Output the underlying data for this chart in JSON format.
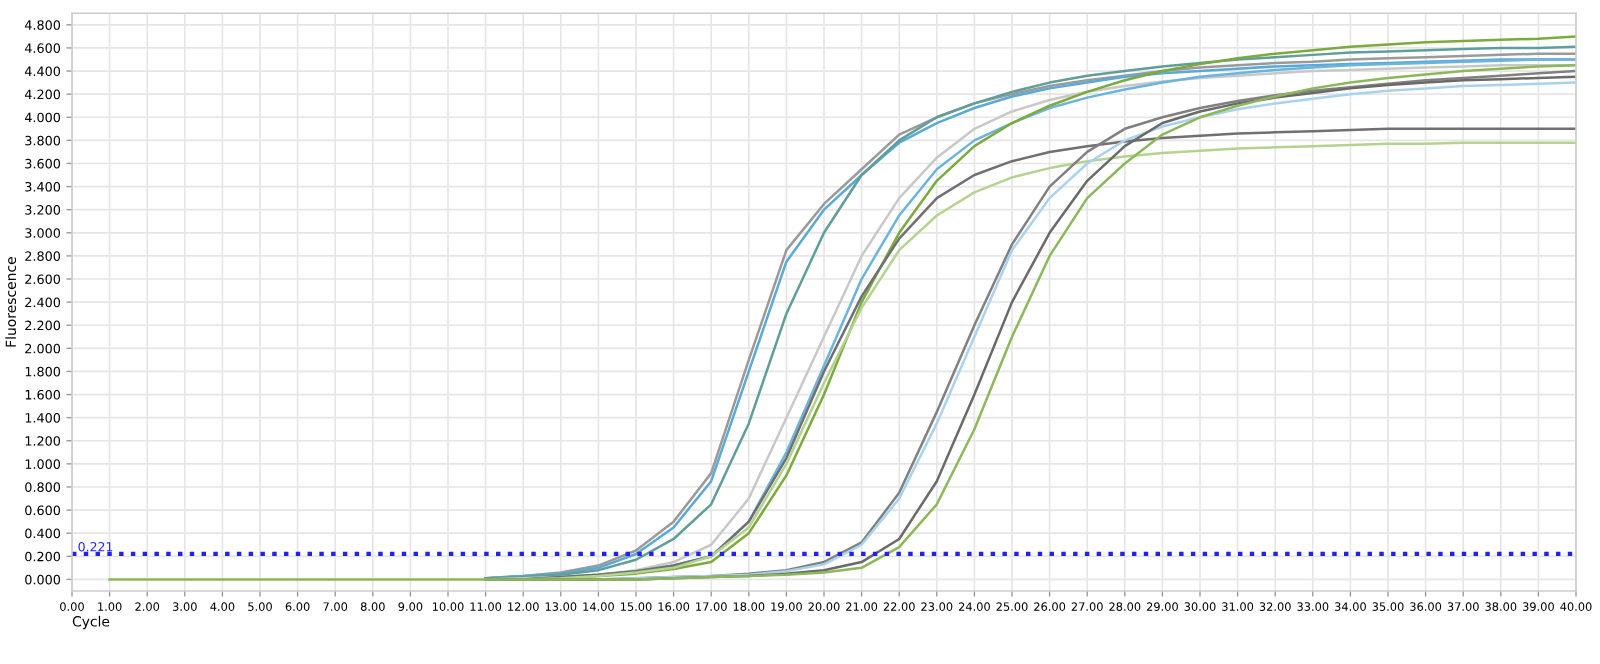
{
  "chart_data": {
    "type": "line",
    "xlabel": "Cycle",
    "ylabel": "Fluorescence",
    "x": [
      1,
      2,
      3,
      4,
      5,
      6,
      7,
      8,
      9,
      10,
      11,
      12,
      13,
      14,
      15,
      16,
      17,
      18,
      19,
      20,
      21,
      22,
      23,
      24,
      25,
      26,
      27,
      28,
      29,
      30,
      31,
      32,
      33,
      34,
      35,
      36,
      37,
      38,
      39,
      40
    ],
    "xlim": [
      0,
      40
    ],
    "ylim": [
      -0.1,
      4.9
    ],
    "xticks": [
      {
        "value": 0,
        "label": "0.00"
      },
      {
        "value": 1,
        "label": "1.00"
      },
      {
        "value": 2,
        "label": "2.00"
      },
      {
        "value": 3,
        "label": "3.00"
      },
      {
        "value": 4,
        "label": "4.00"
      },
      {
        "value": 5,
        "label": "5.00"
      },
      {
        "value": 6,
        "label": "6.00"
      },
      {
        "value": 7,
        "label": "7.00"
      },
      {
        "value": 8,
        "label": "8.00"
      },
      {
        "value": 9,
        "label": "9.00"
      },
      {
        "value": 10,
        "label": "10.00"
      },
      {
        "value": 11,
        "label": "11.00"
      },
      {
        "value": 12,
        "label": "12.00"
      },
      {
        "value": 13,
        "label": "13.00"
      },
      {
        "value": 14,
        "label": "14.00"
      },
      {
        "value": 15,
        "label": "15.00"
      },
      {
        "value": 16,
        "label": "16.00"
      },
      {
        "value": 17,
        "label": "17.00"
      },
      {
        "value": 18,
        "label": "18.00"
      },
      {
        "value": 19,
        "label": "19.00"
      },
      {
        "value": 20,
        "label": "20.00"
      },
      {
        "value": 21,
        "label": "21.00"
      },
      {
        "value": 22,
        "label": "22.00"
      },
      {
        "value": 23,
        "label": "23.00"
      },
      {
        "value": 24,
        "label": "24.00"
      },
      {
        "value": 25,
        "label": "25.00"
      },
      {
        "value": 26,
        "label": "26.00"
      },
      {
        "value": 27,
        "label": "27.00"
      },
      {
        "value": 28,
        "label": "28.00"
      },
      {
        "value": 29,
        "label": "29.00"
      },
      {
        "value": 30,
        "label": "30.00"
      },
      {
        "value": 31,
        "label": "31.00"
      },
      {
        "value": 32,
        "label": "32.00"
      },
      {
        "value": 33,
        "label": "33.00"
      },
      {
        "value": 34,
        "label": "34.00"
      },
      {
        "value": 35,
        "label": "35.00"
      },
      {
        "value": 36,
        "label": "36.00"
      },
      {
        "value": 37,
        "label": "37.00"
      },
      {
        "value": 38,
        "label": "38.00"
      },
      {
        "value": 39,
        "label": "39.00"
      },
      {
        "value": 40,
        "label": "40.00"
      }
    ],
    "yticks": [
      {
        "value": 0,
        "label": "0.000"
      },
      {
        "value": 0.2,
        "label": "0.200"
      },
      {
        "value": 0.4,
        "label": "0.400"
      },
      {
        "value": 0.6,
        "label": "0.600"
      },
      {
        "value": 0.8,
        "label": "0.800"
      },
      {
        "value": 1.0,
        "label": "1.000"
      },
      {
        "value": 1.2,
        "label": "1.200"
      },
      {
        "value": 1.4,
        "label": "1.400"
      },
      {
        "value": 1.6,
        "label": "1.600"
      },
      {
        "value": 1.8,
        "label": "1.800"
      },
      {
        "value": 2.0,
        "label": "2.000"
      },
      {
        "value": 2.2,
        "label": "2.200"
      },
      {
        "value": 2.4,
        "label": "2.400"
      },
      {
        "value": 2.6,
        "label": "2.600"
      },
      {
        "value": 2.8,
        "label": "2.800"
      },
      {
        "value": 3.0,
        "label": "3.000"
      },
      {
        "value": 3.2,
        "label": "3.200"
      },
      {
        "value": 3.4,
        "label": "3.400"
      },
      {
        "value": 3.6,
        "label": "3.600"
      },
      {
        "value": 3.8,
        "label": "3.800"
      },
      {
        "value": 4.0,
        "label": "4.000"
      },
      {
        "value": 4.2,
        "label": "4.200"
      },
      {
        "value": 4.4,
        "label": "4.400"
      },
      {
        "value": 4.6,
        "label": "4.600"
      },
      {
        "value": 4.8,
        "label": "4.800"
      }
    ],
    "grid": true,
    "marker": "none",
    "line_style": "solid",
    "ref_lines": [
      {
        "axis": "y",
        "value": 0.221,
        "label": "0.221",
        "color": "#2222ee",
        "line_style": "dotted"
      }
    ],
    "series": [
      {
        "color": "#9a9a9a",
        "values": [
          null,
          null,
          null,
          null,
          null,
          null,
          null,
          null,
          null,
          null,
          0.01,
          0.03,
          0.06,
          0.12,
          0.25,
          0.5,
          0.92,
          1.9,
          2.85,
          3.25,
          3.55,
          3.85,
          4.0,
          4.12,
          4.2,
          4.27,
          4.32,
          4.36,
          4.4,
          4.43,
          4.45,
          4.47,
          4.48,
          4.5,
          4.51,
          4.52,
          4.53,
          4.54,
          4.55,
          4.55
        ]
      },
      {
        "color": "#5aa9d6",
        "values": [
          null,
          null,
          null,
          null,
          null,
          null,
          null,
          null,
          null,
          null,
          0.01,
          0.03,
          0.05,
          0.1,
          0.22,
          0.45,
          0.85,
          1.8,
          2.75,
          3.2,
          3.5,
          3.78,
          3.95,
          4.08,
          4.18,
          4.25,
          4.3,
          4.35,
          4.38,
          4.4,
          4.42,
          4.44,
          4.45,
          4.46,
          4.47,
          4.48,
          4.49,
          4.5,
          4.5,
          4.5
        ]
      },
      {
        "color": "#5f9e9a",
        "values": [
          null,
          null,
          null,
          null,
          null,
          null,
          null,
          null,
          null,
          null,
          0.01,
          0.02,
          0.04,
          0.08,
          0.17,
          0.35,
          0.65,
          1.35,
          2.3,
          3.0,
          3.5,
          3.8,
          4.0,
          4.12,
          4.22,
          4.3,
          4.36,
          4.4,
          4.44,
          4.47,
          4.5,
          4.52,
          4.54,
          4.56,
          4.57,
          4.58,
          4.59,
          4.6,
          4.6,
          4.61
        ]
      },
      {
        "color": "#c8c8c8",
        "values": [
          null,
          null,
          null,
          null,
          null,
          null,
          null,
          null,
          null,
          null,
          0,
          0.01,
          0.02,
          0.04,
          0.08,
          0.15,
          0.3,
          0.7,
          1.4,
          2.1,
          2.8,
          3.3,
          3.65,
          3.9,
          4.05,
          4.15,
          4.22,
          4.27,
          4.31,
          4.34,
          4.36,
          4.38,
          4.4,
          4.41,
          4.42,
          4.43,
          4.44,
          4.45,
          4.45,
          4.45
        ]
      },
      {
        "color": "#6cb4e0",
        "values": [
          null,
          null,
          null,
          null,
          null,
          null,
          null,
          null,
          null,
          null,
          0,
          0,
          0.02,
          0.04,
          0.07,
          0.12,
          0.2,
          0.5,
          1.1,
          1.85,
          2.6,
          3.15,
          3.55,
          3.8,
          3.95,
          4.08,
          4.17,
          4.24,
          4.3,
          4.35,
          4.38,
          4.41,
          4.43,
          4.45,
          4.46,
          4.47,
          4.48,
          4.49,
          4.5,
          4.5
        ]
      },
      {
        "color": "#7aab3c",
        "values": [
          null,
          null,
          null,
          null,
          null,
          null,
          null,
          null,
          null,
          null,
          0,
          0,
          0.01,
          0.03,
          0.05,
          0.09,
          0.15,
          0.4,
          0.9,
          1.6,
          2.4,
          3.0,
          3.45,
          3.75,
          3.95,
          4.1,
          4.22,
          4.32,
          4.4,
          4.46,
          4.51,
          4.55,
          4.58,
          4.61,
          4.63,
          4.65,
          4.66,
          4.67,
          4.68,
          4.7
        ]
      },
      {
        "color": "#707070",
        "values": [
          null,
          null,
          null,
          null,
          null,
          null,
          null,
          null,
          null,
          null,
          0,
          0,
          0.02,
          0.04,
          0.07,
          0.12,
          0.2,
          0.5,
          1.05,
          1.8,
          2.45,
          2.95,
          3.3,
          3.5,
          3.62,
          3.7,
          3.75,
          3.79,
          3.82,
          3.84,
          3.86,
          3.87,
          3.88,
          3.89,
          3.9,
          3.9,
          3.9,
          3.9,
          3.9,
          3.9
        ]
      },
      {
        "color": "#b5d38f",
        "values": [
          null,
          null,
          null,
          null,
          null,
          null,
          null,
          null,
          null,
          null,
          0,
          0,
          0.01,
          0.03,
          0.06,
          0.1,
          0.2,
          0.45,
          1.0,
          1.7,
          2.35,
          2.85,
          3.15,
          3.35,
          3.48,
          3.56,
          3.62,
          3.66,
          3.69,
          3.71,
          3.73,
          3.74,
          3.75,
          3.76,
          3.77,
          3.77,
          3.78,
          3.78,
          3.78,
          3.78
        ]
      },
      {
        "color": "#808080",
        "values": [
          null,
          null,
          null,
          null,
          null,
          null,
          null,
          null,
          null,
          null,
          0,
          0,
          0,
          0,
          0.01,
          0.02,
          0.03,
          0.05,
          0.08,
          0.15,
          0.32,
          0.75,
          1.45,
          2.2,
          2.9,
          3.4,
          3.7,
          3.9,
          4.0,
          4.08,
          4.14,
          4.19,
          4.23,
          4.26,
          4.29,
          4.32,
          4.34,
          4.36,
          4.38,
          4.4
        ]
      },
      {
        "color": "#a9d2ef",
        "values": [
          null,
          null,
          null,
          null,
          null,
          null,
          null,
          null,
          null,
          null,
          0,
          0,
          0,
          0,
          0.01,
          0.02,
          0.03,
          0.04,
          0.07,
          0.13,
          0.3,
          0.7,
          1.35,
          2.1,
          2.85,
          3.3,
          3.6,
          3.8,
          3.92,
          4.0,
          4.07,
          4.12,
          4.16,
          4.2,
          4.23,
          4.25,
          4.27,
          4.28,
          4.29,
          4.3
        ]
      },
      {
        "color": "#6a6a6a",
        "values": [
          null,
          null,
          null,
          null,
          null,
          null,
          null,
          null,
          null,
          null,
          0,
          0,
          0,
          0,
          0,
          0.01,
          0.02,
          0.03,
          0.05,
          0.08,
          0.15,
          0.35,
          0.85,
          1.6,
          2.4,
          3.0,
          3.45,
          3.75,
          3.95,
          4.05,
          4.12,
          4.17,
          4.21,
          4.25,
          4.28,
          4.3,
          4.32,
          4.33,
          4.34,
          4.35
        ]
      },
      {
        "color": "#8cb85a",
        "values": [
          0,
          0,
          0,
          0,
          0,
          0,
          0,
          0,
          0,
          0,
          0,
          0,
          0,
          0,
          0,
          0.01,
          0.02,
          0.03,
          0.04,
          0.06,
          0.1,
          0.28,
          0.65,
          1.3,
          2.1,
          2.8,
          3.3,
          3.6,
          3.85,
          4.0,
          4.1,
          4.18,
          4.25,
          4.3,
          4.34,
          4.37,
          4.4,
          4.42,
          4.44,
          4.45
        ]
      }
    ]
  }
}
